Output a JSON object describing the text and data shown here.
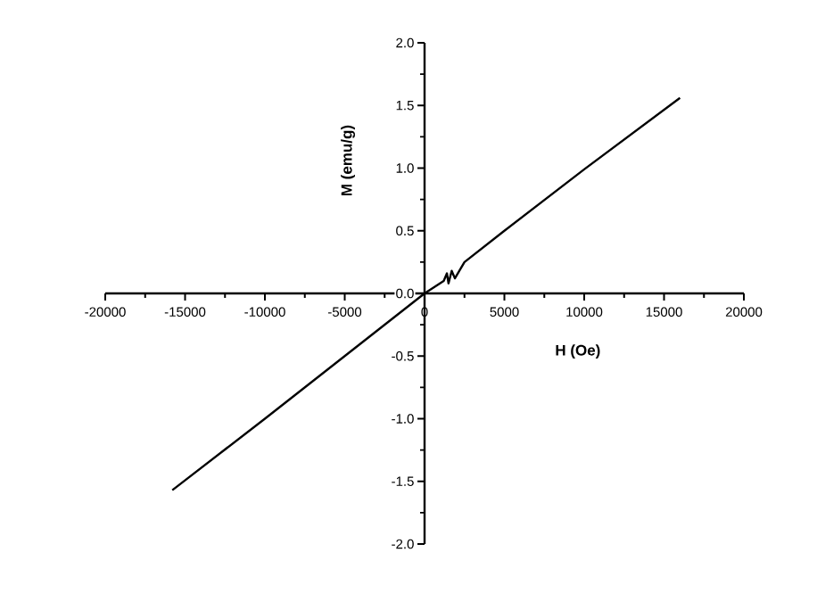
{
  "chart_data": {
    "type": "line",
    "xlabel": "H (Oe)",
    "ylabel": "M (emu/g)",
    "color": "#000000",
    "x": [
      -15800,
      -10000,
      -5000,
      0,
      1200,
      1400,
      1500,
      1700,
      1900,
      2500,
      5000,
      10000,
      16000
    ],
    "values": [
      -1.57,
      -1.0,
      -0.5,
      0.0,
      0.1,
      0.16,
      0.08,
      0.18,
      0.12,
      0.25,
      0.5,
      0.99,
      1.56
    ],
    "xlim": [
      -20000,
      20000
    ],
    "ylim": [
      -2.0,
      2.0
    ],
    "xticks": [
      -20000,
      -15000,
      -10000,
      -5000,
      0,
      5000,
      10000,
      15000,
      20000
    ],
    "yticks": [
      {
        "value": -2.0,
        "label": "-2.0"
      },
      {
        "value": -1.5,
        "label": "-1.5"
      },
      {
        "value": -1.0,
        "label": "-1.0"
      },
      {
        "value": -0.5,
        "label": "-0.5"
      },
      {
        "value": 0.0,
        "label": "0.0"
      },
      {
        "value": 0.5,
        "label": "0.5"
      },
      {
        "value": 1.0,
        "label": "1.0"
      },
      {
        "value": 1.5,
        "label": "1.5"
      },
      {
        "value": 2.0,
        "label": "2.0"
      }
    ]
  }
}
